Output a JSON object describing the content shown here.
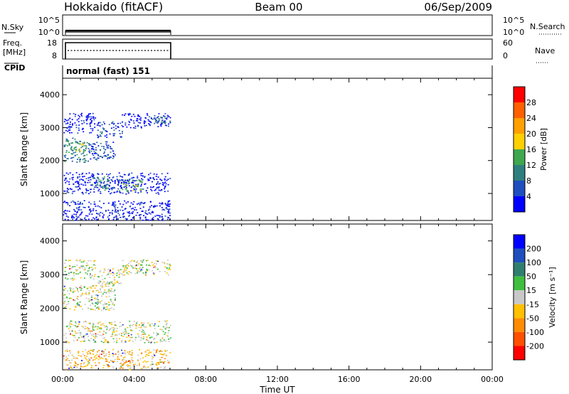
{
  "header": {
    "station": "Hokkaido (fitACF)",
    "beam": "Beam 00",
    "date": "06/Sep/2009"
  },
  "panels": {
    "nsky_label": "N.Sky",
    "nsearch_label": "N.Search",
    "freq_label_1": "Freq.",
    "freq_label_2": "[MHz]",
    "nave_label": "Nave",
    "cpid_label": "CPID",
    "cpid_value": "normal (fast) 151",
    "noise_ticks_left": [
      "10^5",
      "10^0"
    ],
    "noise_ticks_right": [
      "10^5",
      "10^0"
    ],
    "freq_ticks_left": [
      "18",
      "8"
    ],
    "freq_ticks_right": [
      "60",
      "0"
    ]
  },
  "colors": {
    "power": [
      "#0000ff",
      "#1f4fbf",
      "#2f7f7f",
      "#3fa84f",
      "#ffd000",
      "#ffa000",
      "#ff6000",
      "#ff0000"
    ],
    "velocity": [
      "#ff0000",
      "#ff5000",
      "#ff8c00",
      "#ffc000",
      "#c8c8c8",
      "#3fbf3f",
      "#2f7f6f",
      "#1f4fbf",
      "#0000ff"
    ]
  },
  "chart_data": [
    {
      "type": "heatmap",
      "name": "power",
      "ylabel": "Slant Range [km]",
      "yticks": [
        "1000",
        "2000",
        "3000",
        "4000"
      ],
      "ylim": [
        180,
        4500
      ],
      "xlim": [
        0,
        24
      ],
      "data_extent_hours": [
        0,
        6
      ],
      "colorbar_label": "Power [dB]",
      "colorbar_ticks": [
        "4",
        "8",
        "12",
        "16",
        "20",
        "24",
        "28"
      ],
      "regions": [
        {
          "t0": 0.05,
          "t1": 1.8,
          "r0": 2850,
          "r1": 3450,
          "level": 0
        },
        {
          "t0": 1.9,
          "t1": 3.3,
          "r0": 2700,
          "r1": 3200,
          "level": 1
        },
        {
          "t0": 3.3,
          "t1": 6.0,
          "r0": 3000,
          "r1": 3450,
          "level": 0
        },
        {
          "t0": 4.8,
          "t1": 6.0,
          "r0": 3150,
          "r1": 3350,
          "level": 2
        },
        {
          "t0": 0.0,
          "t1": 1.4,
          "r0": 1950,
          "r1": 2700,
          "level": 2
        },
        {
          "t0": 0.4,
          "t1": 1.2,
          "r0": 2150,
          "r1": 2550,
          "level": 3
        },
        {
          "t0": 1.4,
          "t1": 2.9,
          "r0": 2000,
          "r1": 2600,
          "level": 1
        },
        {
          "t0": 0.05,
          "t1": 6.0,
          "r0": 1000,
          "r1": 1650,
          "level": 0
        },
        {
          "t0": 1.6,
          "t1": 2.6,
          "r0": 1100,
          "r1": 1550,
          "level": 2
        },
        {
          "t0": 3.1,
          "t1": 4.4,
          "r0": 1050,
          "r1": 1450,
          "level": 3
        },
        {
          "t0": 0.0,
          "t1": 6.0,
          "r0": 200,
          "r1": 800,
          "level": 0
        }
      ]
    },
    {
      "type": "heatmap",
      "name": "velocity",
      "ylabel": "Slant Range [km]",
      "yticks": [
        "1000",
        "2000",
        "3000",
        "4000"
      ],
      "ylim": [
        180,
        4500
      ],
      "xlim": [
        0,
        24
      ],
      "data_extent_hours": [
        0,
        6
      ],
      "colorbar_label": "Velocity [m s⁻¹]",
      "colorbar_ticks": [
        "200",
        "100",
        "50",
        "15",
        "-15",
        "-50",
        "-100",
        "-200"
      ],
      "regions": [
        {
          "t0": 0.05,
          "t1": 1.8,
          "r0": 2850,
          "r1": 3450,
          "level": 4
        },
        {
          "t0": 1.9,
          "t1": 3.3,
          "r0": 2700,
          "r1": 3200,
          "level": 4
        },
        {
          "t0": 3.3,
          "t1": 6.0,
          "r0": 3000,
          "r1": 3450,
          "level": 4
        },
        {
          "t0": 0.0,
          "t1": 2.9,
          "r0": 1950,
          "r1": 2700,
          "level": 4
        },
        {
          "t0": 0.05,
          "t1": 6.0,
          "r0": 1000,
          "r1": 1650,
          "level": 4
        },
        {
          "t0": 0.0,
          "t1": 6.0,
          "r0": 200,
          "r1": 800,
          "level": 3
        }
      ]
    }
  ],
  "xaxis": {
    "label": "Time UT",
    "ticks": [
      "00:00",
      "04:00",
      "08:00",
      "12:00",
      "16:00",
      "20:00",
      "00:00"
    ]
  }
}
